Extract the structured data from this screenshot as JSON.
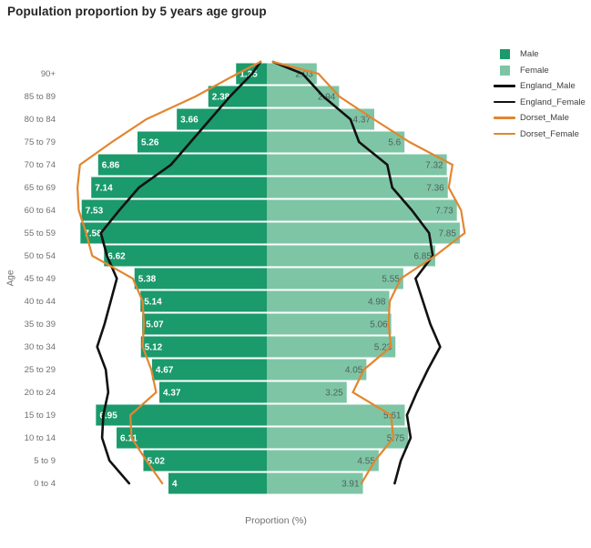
{
  "title": "Population proportion by 5 years age group",
  "axes": {
    "x_label": "Proportion (%)",
    "y_label": "Age"
  },
  "colors": {
    "male_bar": "#1b9a6c",
    "female_bar": "#7ec5a6",
    "england_line": "#111111",
    "dorset_line": "#e2862f",
    "male_value_label": "#ffffff",
    "female_value_label": "#51615a",
    "tick_label": "#6f6f6f"
  },
  "legend": {
    "position": "top-right",
    "items": [
      {
        "label": "Male",
        "swatch": "square",
        "color": "#1b9a6c"
      },
      {
        "label": "Female",
        "swatch": "square",
        "color": "#7ec5a6"
      },
      {
        "label": "England_Male",
        "swatch": "line",
        "color": "#111111"
      },
      {
        "label": "England_Female",
        "swatch": "line",
        "color": "#111111"
      },
      {
        "label": "Dorset_Male",
        "swatch": "line",
        "color": "#e2862f"
      },
      {
        "label": "Dorset_Female",
        "swatch": "line",
        "color": "#e2862f"
      }
    ]
  },
  "chart_data": {
    "type": "bar",
    "subtype": "population-pyramid",
    "title": "Population proportion by 5 years age group",
    "xlabel": "Proportion (%)",
    "ylabel": "Age",
    "grid": false,
    "x_range_each_side": [
      0,
      8.5
    ],
    "legend_position": "top-right",
    "categories_top_to_bottom": [
      "90+",
      "85 to 89",
      "80 to 84",
      "75 to 79",
      "70 to 74",
      "65 to 69",
      "60 to 64",
      "55 to 59",
      "50 to 54",
      "45 to 49",
      "40 to 44",
      "35 to 39",
      "30 to 34",
      "25 to 29",
      "20 to 24",
      "15 to 19",
      "10 to 14",
      "5 to 9",
      "0 to 4"
    ],
    "series": [
      {
        "name": "Male",
        "render": "bar",
        "side": "left",
        "color": "#1b9a6c",
        "label_color": "#ffffff",
        "values": [
          1.25,
          2.38,
          3.66,
          5.26,
          6.86,
          7.14,
          7.53,
          7.58,
          6.62,
          5.38,
          5.14,
          5.07,
          5.12,
          4.67,
          4.37,
          6.95,
          6.11,
          5.02,
          4
        ]
      },
      {
        "name": "Female",
        "render": "bar",
        "side": "right",
        "color": "#7ec5a6",
        "label_color": "#51615a",
        "values": [
          2.03,
          2.94,
          4.37,
          5.6,
          7.32,
          7.36,
          7.73,
          7.85,
          6.85,
          5.55,
          4.98,
          5.06,
          5.23,
          4.05,
          3.25,
          5.61,
          5.75,
          4.55,
          3.91
        ]
      },
      {
        "name": "England_Male",
        "render": "line",
        "side": "left",
        "color": "#111111",
        "values_estimated": true,
        "values": [
          0.6,
          1.5,
          2.3,
          3.1,
          3.9,
          5.2,
          6.0,
          6.75,
          6.5,
          6.1,
          6.35,
          6.6,
          6.9,
          6.55,
          6.45,
          6.65,
          6.7,
          6.4,
          5.6
        ]
      },
      {
        "name": "England_Female",
        "render": "line",
        "side": "right",
        "color": "#111111",
        "values_estimated": true,
        "values": [
          1.45,
          2.3,
          3.4,
          3.75,
          4.9,
          5.1,
          5.9,
          6.6,
          6.75,
          6.05,
          6.35,
          6.65,
          7.05,
          6.55,
          6.1,
          5.7,
          5.85,
          5.45,
          5.2
        ]
      },
      {
        "name": "Dorset_Male",
        "render": "line",
        "side": "left",
        "color": "#e2862f",
        "values_estimated": true,
        "values": [
          1.2,
          2.9,
          4.9,
          6.3,
          7.6,
          7.7,
          7.65,
          7.35,
          7.1,
          5.45,
          5.05,
          5.0,
          5.05,
          4.7,
          4.5,
          5.55,
          5.5,
          4.9,
          4.25
        ]
      },
      {
        "name": "Dorset_Female",
        "render": "line",
        "side": "right",
        "color": "#e2862f",
        "values_estimated": true,
        "values": [
          2.1,
          2.95,
          4.35,
          5.8,
          7.55,
          7.4,
          7.9,
          8.05,
          6.85,
          5.45,
          5.0,
          4.95,
          5.05,
          3.95,
          3.5,
          5.05,
          5.15,
          4.4,
          3.85
        ]
      }
    ]
  }
}
